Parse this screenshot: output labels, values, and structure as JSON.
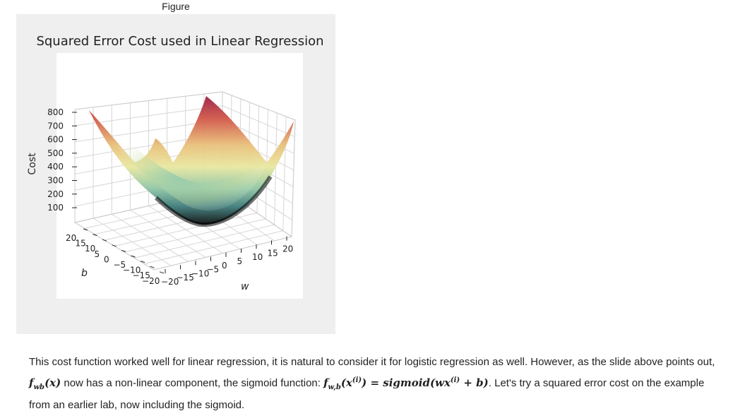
{
  "figure": {
    "label": "Figure",
    "title": "Squared Error Cost used in Linear Regression",
    "zlabel": "Cost",
    "xlabel": "w",
    "ylabel": "b",
    "z_ticks": [
      "800",
      "700",
      "600",
      "500",
      "400",
      "300",
      "200",
      "100"
    ],
    "w_ticks": [
      "−20",
      "−15",
      "−10",
      "−5",
      "0",
      "5",
      "10",
      "15",
      "20"
    ],
    "b_ticks": [
      "20",
      "15",
      "10",
      "5",
      "0",
      "−5",
      "−10",
      "−15",
      "−20"
    ]
  },
  "chart_data": {
    "type": "surface",
    "title": "Squared Error Cost used in Linear Regression",
    "xlabel": "w",
    "ylabel": "b",
    "zlabel": "Cost",
    "xlim": [
      -20,
      20
    ],
    "ylim": [
      -20,
      20
    ],
    "zlim": [
      0,
      800
    ],
    "grid": true,
    "colormap": "Spectral_r",
    "surface": "bowl-shaped paraboloid with minimum near w=0, b=0; corner peaks about 500 to 790"
  },
  "text": {
    "p1": "This cost function worked well for linear regression, it is natural to consider it for logistic regression as well. However, as the slide above points out, ",
    "f_wb_x": "f",
    "f_wb_x_sub": "wb",
    "f_wb_x_arg": "(x)",
    "p2": " now has a non-linear component, the sigmoid function: ",
    "sig_f": "f",
    "sig_f_sub": "w,b",
    "sig_f_arg": "(x",
    "sig_f_sup": "(i)",
    "sig_eq": ") = sigmoid(wx",
    "sig_eq_sup": "(i)",
    "sig_eq_end": " + b)",
    "p3": ". Let's try a squared error cost on the example from an earlier lab, now including the sigmoid."
  }
}
